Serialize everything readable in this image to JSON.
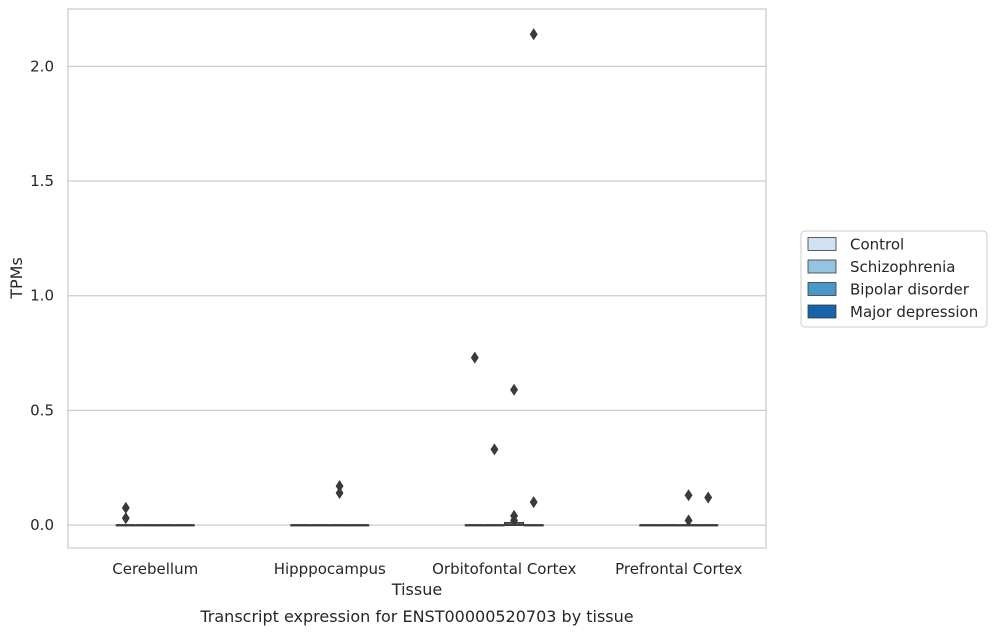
{
  "caption": "Transcript expression for ENST00000520703 by tissue",
  "chart_data": {
    "type": "boxplot",
    "xlabel": "Tissue",
    "ylabel": "TPMs",
    "categories": [
      "Cerebellum",
      "Hipppocampus",
      "Orbitofontal Cortex",
      "Prefrontal Cortex"
    ],
    "ylim": [
      -0.1,
      2.25
    ],
    "yticks": [
      "0.0",
      "0.5",
      "1.0",
      "1.5",
      "2.0"
    ],
    "grid": "horizontal",
    "legend_position": "right",
    "series": [
      {
        "name": "Control",
        "color": "#d0e1f2",
        "boxes": [
          {
            "q1": 0,
            "median": 0,
            "q3": 0,
            "whisker_low": 0,
            "whisker_high": 0,
            "outliers": [
              0.03,
              0.075
            ]
          },
          {
            "q1": 0,
            "median": 0,
            "q3": 0,
            "whisker_low": 0,
            "whisker_high": 0,
            "outliers": []
          },
          {
            "q1": 0,
            "median": 0,
            "q3": 0,
            "whisker_low": 0,
            "whisker_high": 0,
            "outliers": [
              0.73
            ]
          },
          {
            "q1": 0,
            "median": 0,
            "q3": 0,
            "whisker_low": 0,
            "whisker_high": 0,
            "outliers": []
          }
        ]
      },
      {
        "name": "Schizophrenia",
        "color": "#94c4df",
        "boxes": [
          {
            "q1": 0,
            "median": 0,
            "q3": 0,
            "whisker_low": 0,
            "whisker_high": 0,
            "outliers": []
          },
          {
            "q1": 0,
            "median": 0,
            "q3": 0,
            "whisker_low": 0,
            "whisker_high": 0,
            "outliers": []
          },
          {
            "q1": 0,
            "median": 0,
            "q3": 0,
            "whisker_low": 0,
            "whisker_high": 0,
            "outliers": [
              0.33
            ]
          },
          {
            "q1": 0,
            "median": 0,
            "q3": 0,
            "whisker_low": 0,
            "whisker_high": 0,
            "outliers": []
          }
        ]
      },
      {
        "name": "Bipolar disorder",
        "color": "#4a98c9",
        "boxes": [
          {
            "q1": 0,
            "median": 0,
            "q3": 0,
            "whisker_low": 0,
            "whisker_high": 0,
            "outliers": []
          },
          {
            "q1": 0,
            "median": 0,
            "q3": 0,
            "whisker_low": 0,
            "whisker_high": 0,
            "outliers": [
              0.14,
              0.17
            ]
          },
          {
            "q1": 0,
            "median": 0,
            "q3": 0.01,
            "whisker_low": 0,
            "whisker_high": 0.01,
            "outliers": [
              0.02,
              0.04,
              0.59
            ]
          },
          {
            "q1": 0,
            "median": 0,
            "q3": 0,
            "whisker_low": 0,
            "whisker_high": 0,
            "outliers": [
              0.02,
              0.13
            ]
          }
        ]
      },
      {
        "name": "Major depression",
        "color": "#1764ab",
        "boxes": [
          {
            "q1": 0,
            "median": 0,
            "q3": 0,
            "whisker_low": 0,
            "whisker_high": 0,
            "outliers": []
          },
          {
            "q1": 0,
            "median": 0,
            "q3": 0,
            "whisker_low": 0,
            "whisker_high": 0,
            "outliers": []
          },
          {
            "q1": 0,
            "median": 0,
            "q3": 0,
            "whisker_low": 0,
            "whisker_high": 0,
            "outliers": [
              0.1,
              2.14
            ]
          },
          {
            "q1": 0,
            "median": 0,
            "q3": 0,
            "whisker_low": 0,
            "whisker_high": 0,
            "outliers": [
              0.12
            ]
          }
        ]
      }
    ]
  }
}
